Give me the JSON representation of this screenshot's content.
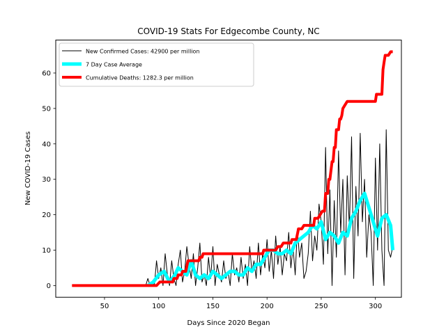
{
  "chart_data": {
    "type": "line",
    "title": "COVID-19 Stats For Edgecombe County, NC",
    "xlabel": "Days Since 2020 Began",
    "ylabel": "New COVID-19 Cases",
    "xlim": [
      5,
      324
    ],
    "ylim": [
      -3.3,
      69.3
    ],
    "xticks": [
      50,
      100,
      150,
      200,
      250,
      300
    ],
    "yticks": [
      0,
      10,
      20,
      30,
      40,
      50,
      60
    ],
    "legend_position": "top-left",
    "series": [
      {
        "name": "New Confirmed Cases: 42900 per million",
        "color": "#000000",
        "x": [
          88,
          90,
          92,
          94,
          96,
          98,
          100,
          102,
          104,
          106,
          108,
          110,
          112,
          114,
          116,
          118,
          120,
          122,
          124,
          126,
          128,
          130,
          132,
          134,
          136,
          138,
          140,
          142,
          144,
          146,
          148,
          150,
          152,
          154,
          156,
          158,
          160,
          162,
          164,
          166,
          168,
          170,
          172,
          174,
          176,
          178,
          180,
          182,
          184,
          186,
          188,
          190,
          192,
          194,
          196,
          198,
          200,
          202,
          204,
          206,
          208,
          210,
          212,
          214,
          216,
          218,
          220,
          222,
          224,
          226,
          228,
          230,
          232,
          234,
          236,
          238,
          240,
          242,
          244,
          246,
          248,
          250,
          252,
          254,
          256,
          258,
          260,
          262,
          264,
          266,
          268,
          270,
          272,
          274,
          276,
          278,
          280,
          282,
          284,
          286,
          288,
          290,
          292,
          294,
          296,
          298,
          300,
          302,
          304,
          306,
          308,
          310,
          312,
          314,
          316
        ],
        "values": [
          0,
          2,
          0,
          1,
          0,
          7,
          2,
          5,
          0,
          9,
          3,
          0,
          7,
          2,
          0,
          6,
          10,
          1,
          4,
          11,
          6,
          2,
          9,
          0,
          5,
          12,
          1,
          3,
          0,
          8,
          2,
          11,
          0,
          6,
          3,
          1,
          7,
          2,
          4,
          0,
          9,
          3,
          5,
          1,
          8,
          2,
          6,
          0,
          11,
          4,
          7,
          2,
          12,
          3,
          9,
          5,
          13,
          4,
          10,
          2,
          14,
          6,
          11,
          3,
          9,
          7,
          15,
          5,
          11,
          3,
          16,
          8,
          12,
          2,
          4,
          9,
          21,
          7,
          14,
          10,
          23,
          18,
          6,
          39,
          9,
          27,
          0,
          24,
          8,
          38,
          15,
          30,
          3,
          31,
          16,
          42,
          2,
          28,
          14,
          43,
          18,
          30,
          8,
          20,
          15,
          0,
          36,
          10,
          40,
          10,
          0,
          44,
          10,
          8,
          11
        ],
        "width": 1
      },
      {
        "name": "7 Day Case Average",
        "color": "#00ffff",
        "x": [
          90,
          95,
          100,
          105,
          110,
          115,
          118,
          122,
          126,
          130,
          134,
          138,
          142,
          146,
          150,
          154,
          158,
          162,
          166,
          170,
          174,
          178,
          182,
          186,
          190,
          194,
          198,
          202,
          206,
          210,
          214,
          218,
          222,
          226,
          230,
          234,
          238,
          242,
          246,
          250,
          254,
          258,
          262,
          266,
          270,
          274,
          278,
          282,
          286,
          290,
          294,
          298,
          302,
          306,
          310,
          314,
          316
        ],
        "values": [
          0,
          1,
          3,
          4,
          1,
          3,
          5,
          4,
          3,
          7,
          3,
          2,
          3,
          2,
          4,
          3,
          2,
          3,
          4,
          4,
          3,
          3,
          5,
          4,
          6,
          6,
          8,
          10,
          10,
          9,
          9,
          10,
          9,
          12,
          13,
          14,
          15,
          17,
          16,
          18,
          13,
          15,
          14,
          12,
          15,
          14,
          19,
          21,
          24,
          26,
          22,
          18,
          14,
          19,
          20,
          17,
          10
        ],
        "width": 5
      },
      {
        "name": "Cumulative Deaths: 1282.3 per million",
        "color": "#ff0000",
        "x": [
          20,
          98,
          101,
          113,
          114,
          117,
          118,
          121,
          122,
          125,
          127,
          137,
          138,
          140,
          141,
          196,
          197,
          208,
          210,
          213,
          215,
          222,
          223,
          227,
          229,
          232,
          234,
          243,
          244,
          247,
          251,
          253,
          254,
          256,
          257,
          258,
          260,
          261,
          262,
          263,
          264,
          266,
          267,
          268,
          269,
          270,
          272,
          274,
          280,
          300,
          301,
          302,
          303,
          306,
          307,
          308,
          309,
          310,
          312,
          314,
          316
        ],
        "values": [
          0,
          0,
          1,
          1,
          2,
          2,
          3,
          3,
          4,
          4,
          7,
          7,
          8,
          8,
          9,
          9,
          10,
          10,
          11,
          11,
          12,
          12,
          13,
          13,
          16,
          16,
          17,
          17,
          19,
          19,
          21,
          21,
          26,
          26,
          30,
          30,
          35,
          35,
          39,
          39,
          44,
          44,
          47,
          47,
          48,
          50,
          51,
          52,
          52,
          52,
          54,
          54,
          54,
          54,
          61,
          63,
          65,
          65,
          65,
          66,
          66
        ],
        "width": 4
      }
    ]
  }
}
